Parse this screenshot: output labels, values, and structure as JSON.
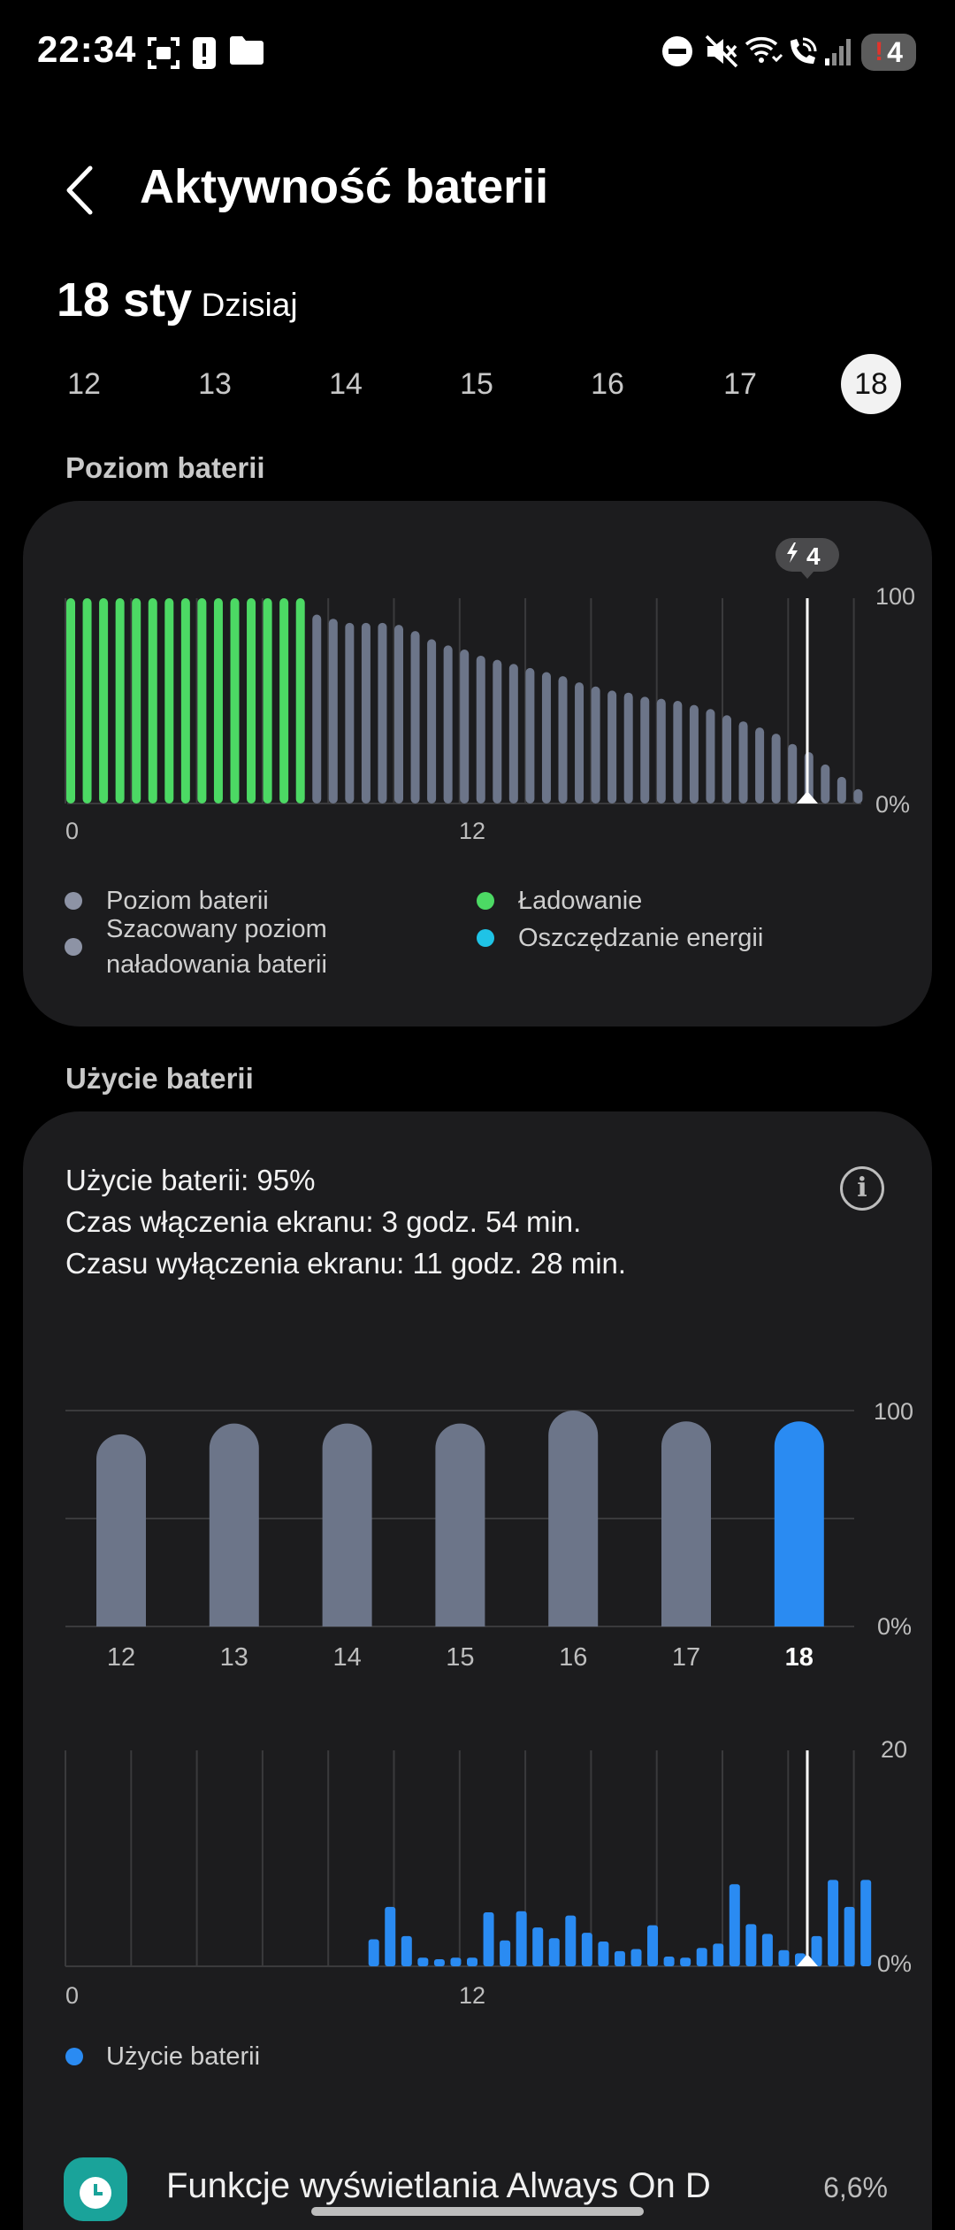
{
  "status_bar": {
    "time": "22:34",
    "notification_count": "4",
    "icons": [
      "screenshot-icon",
      "alert-icon",
      "folder-icon",
      "dnd-icon",
      "mute-icon",
      "wifi-calling-icon",
      "wifi-call-icon",
      "signal-icon",
      "battery-icon"
    ]
  },
  "header": {
    "title": "Aktywność baterii",
    "back_icon": "back-arrow-icon"
  },
  "date": {
    "main": "18 sty",
    "sub": "Dzisiaj"
  },
  "days": [
    {
      "label": "12",
      "selected": false
    },
    {
      "label": "13",
      "selected": false
    },
    {
      "label": "14",
      "selected": false
    },
    {
      "label": "15",
      "selected": false
    },
    {
      "label": "16",
      "selected": false
    },
    {
      "label": "17",
      "selected": false
    },
    {
      "label": "18",
      "selected": true
    }
  ],
  "level_section": {
    "title": "Poziom baterii",
    "badge": "4",
    "legend": {
      "level": "Poziom baterii",
      "estimated_line1": "Szacowany poziom",
      "estimated_line2": "naładowania baterii",
      "charging": "Ładowanie",
      "power_saving": "Oszczędzanie energii"
    }
  },
  "usage_section": {
    "title": "Użycie baterii",
    "info_line1": "Użycie baterii: 95%",
    "info_line2": "Czas włączenia ekranu: 3 godz. 54 min.",
    "info_line3": "Czasu wyłączenia ekranu: 11 godz. 28 min.",
    "info_icon": "info-icon",
    "legend_usage": "Użycie baterii"
  },
  "app_row": {
    "name": "Funkcje wyświetlania Always On D",
    "percent": "6,6%",
    "icon": "always-on-display-icon"
  },
  "colors": {
    "charging": "#4cd964",
    "level": "#6c7589",
    "power_saving": "#1fc3e6",
    "usage": "#2a8bf2",
    "grid": "#3a3a3c"
  },
  "chart_data": [
    {
      "type": "bar",
      "title": "Poziom baterii",
      "x_tick_labels": [
        "0",
        "12"
      ],
      "y_tick_labels": [
        "100",
        "0%"
      ],
      "ylim": [
        0,
        100
      ],
      "series": [
        {
          "name": "Ładowanie",
          "values": [
            100,
            100,
            100,
            100,
            100,
            100,
            100,
            100,
            100,
            100,
            100,
            100,
            100,
            100,
            100
          ]
        },
        {
          "name": "Poziom baterii",
          "values": [
            92,
            90,
            88,
            88,
            88,
            87,
            84,
            80,
            77,
            75,
            72,
            70,
            68,
            66,
            64,
            62,
            59,
            57,
            55,
            54,
            52,
            51,
            50,
            48,
            46,
            43,
            40,
            37,
            34,
            29,
            25,
            19,
            13,
            7
          ]
        }
      ],
      "charging_count": 15,
      "badge_value": "4"
    },
    {
      "type": "bar",
      "categories": [
        "12",
        "13",
        "14",
        "15",
        "16",
        "17",
        "18"
      ],
      "y_tick_labels": [
        "100",
        "0%"
      ],
      "ylim": [
        0,
        100
      ],
      "values": [
        89,
        94,
        94,
        94,
        100,
        95,
        95
      ],
      "highlight_index": 6
    },
    {
      "type": "bar",
      "title": "Użycie baterii",
      "x_tick_labels": [
        "0",
        "12"
      ],
      "y_tick_labels": [
        "20",
        "0%"
      ],
      "ylim": [
        0,
        20
      ],
      "start_slot": 14,
      "values": [
        2.5,
        5.5,
        2.8,
        0.8,
        0.6,
        0.8,
        0.8,
        5,
        2.4,
        5.1,
        3.6,
        2.6,
        4.7,
        3.1,
        2.3,
        1.4,
        1.6,
        3.8,
        0.9,
        0.8,
        1.7,
        2.1,
        7.6,
        3.9,
        3,
        1.5,
        1.2,
        2.8,
        8,
        5.5,
        8
      ]
    }
  ]
}
